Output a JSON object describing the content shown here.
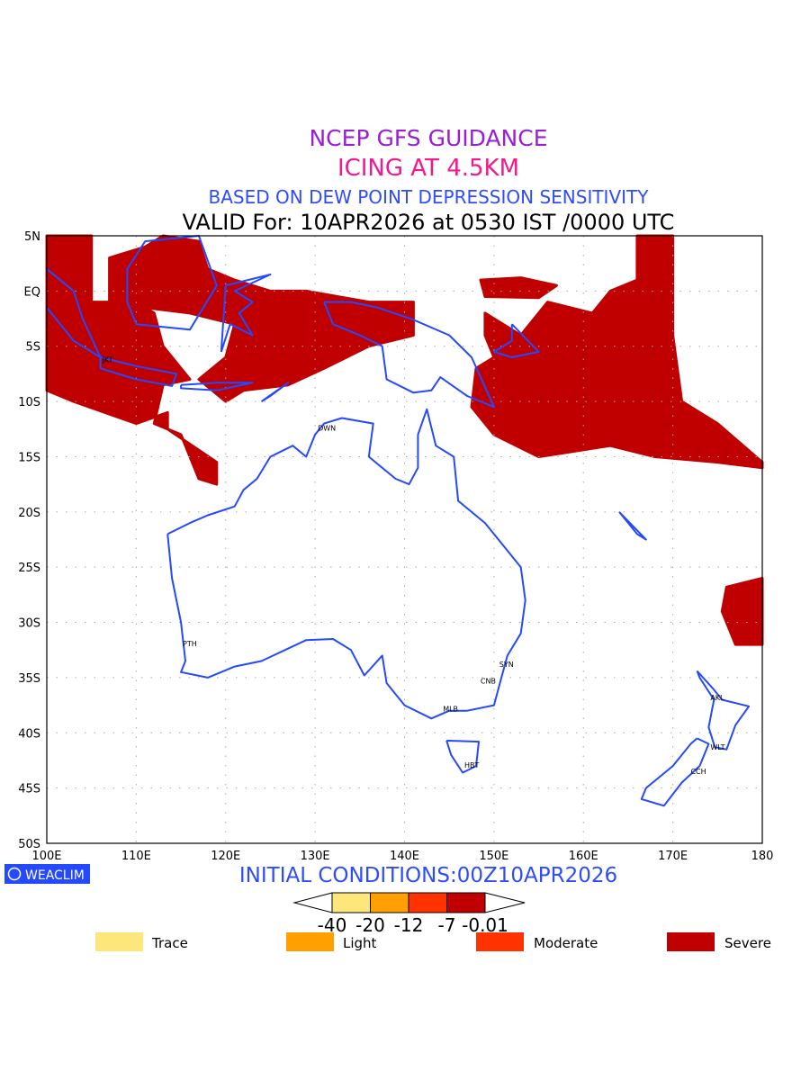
{
  "titles": {
    "line1": "NCEP GFS GUIDANCE",
    "line2": "ICING AT 4.5KM",
    "line3": "BASED ON DEW POINT DEPRESSION SENSITIVITY",
    "line4": "VALID For: 10APR2026 at 0530 IST /0000 UTC"
  },
  "colors": {
    "title1": "#9a1ed6",
    "title2": "#f5188c",
    "title3": "#2d4cff",
    "coast": "#2449ff",
    "trace": "#fde77a",
    "light": "#ff9f00",
    "moderate": "#ff3300",
    "severe": "#c00000"
  },
  "map": {
    "lon_range": [
      100,
      180
    ],
    "lat_range": [
      -50,
      5
    ],
    "lon_ticks": [
      "100E",
      "110E",
      "120E",
      "130E",
      "140E",
      "150E",
      "160E",
      "170E",
      "180"
    ],
    "lat_ticks": [
      "5N",
      "EQ",
      "5S",
      "10S",
      "15S",
      "20S",
      "25S",
      "30S",
      "35S",
      "40S",
      "45S",
      "50S"
    ],
    "cities": [
      {
        "name": "JKT",
        "lon": 106.8,
        "lat": -6.2
      },
      {
        "name": "DWN",
        "lon": 130.9,
        "lat": -12.4
      },
      {
        "name": "PTH",
        "lon": 115.8,
        "lat": -31.9
      },
      {
        "name": "SYN",
        "lon": 151.2,
        "lat": -33.8
      },
      {
        "name": "CNB",
        "lon": 149.1,
        "lat": -35.3
      },
      {
        "name": "MLB",
        "lon": 144.9,
        "lat": -37.8
      },
      {
        "name": "HBT",
        "lon": 147.3,
        "lat": -42.9
      },
      {
        "name": "AKL",
        "lon": 174.8,
        "lat": -36.8
      },
      {
        "name": "WLT",
        "lon": 174.8,
        "lat": -41.3
      },
      {
        "name": "CCH",
        "lon": 172.6,
        "lat": -43.5
      }
    ],
    "severe_regions": [
      [
        [
          100,
          5
        ],
        [
          105,
          5
        ],
        [
          105,
          -1
        ],
        [
          110,
          -1
        ],
        [
          112,
          -2
        ],
        [
          113,
          -5
        ],
        [
          116,
          -8
        ],
        [
          113,
          -8.5
        ],
        [
          112,
          -12
        ],
        [
          115,
          -13
        ],
        [
          117,
          -17
        ],
        [
          119,
          -17.5
        ],
        [
          119,
          -15.5
        ],
        [
          113.5,
          -12.5
        ],
        [
          113.5,
          -11
        ],
        [
          110,
          -12
        ],
        [
          103,
          -10
        ],
        [
          100,
          -9
        ]
      ],
      [
        [
          107,
          3
        ],
        [
          111,
          4
        ],
        [
          113,
          5
        ],
        [
          117,
          4.5
        ],
        [
          118,
          2
        ],
        [
          121,
          1
        ],
        [
          125,
          0
        ],
        [
          129,
          0
        ],
        [
          136,
          -1
        ],
        [
          141,
          -1
        ],
        [
          141,
          -4
        ],
        [
          136,
          -5
        ],
        [
          131,
          -7
        ],
        [
          127,
          -8.5
        ],
        [
          122,
          -9
        ],
        [
          120,
          -10
        ],
        [
          117,
          -8
        ],
        [
          120,
          -6
        ],
        [
          121,
          -3
        ],
        [
          116,
          -2
        ],
        [
          111,
          -1.5
        ],
        [
          107,
          -1
        ],
        [
          107,
          1
        ]
      ],
      [
        [
          149,
          -2
        ],
        [
          153,
          -4
        ],
        [
          156,
          -1
        ],
        [
          161,
          -2
        ],
        [
          163,
          0
        ],
        [
          166,
          1
        ],
        [
          166,
          5
        ],
        [
          170,
          5
        ],
        [
          170,
          -4
        ],
        [
          171,
          -10
        ],
        [
          175,
          -12
        ],
        [
          180,
          -15.5
        ],
        [
          180,
          -16
        ],
        [
          175,
          -15.5
        ],
        [
          168,
          -15
        ],
        [
          163,
          -14
        ],
        [
          155,
          -15
        ],
        [
          150,
          -13
        ],
        [
          147.5,
          -10.5
        ],
        [
          148,
          -7
        ],
        [
          150,
          -6
        ],
        [
          149,
          -4
        ]
      ],
      [
        [
          148.5,
          1
        ],
        [
          153,
          1.2
        ],
        [
          157,
          0.5
        ],
        [
          155,
          -0.6
        ],
        [
          149,
          -0.5
        ]
      ],
      [
        [
          176,
          -26.8
        ],
        [
          180,
          -26
        ],
        [
          180,
          -32
        ],
        [
          177,
          -32
        ],
        [
          175.5,
          -29
        ]
      ]
    ],
    "coastlines": [
      [
        [
          113.5,
          -22
        ],
        [
          114,
          -26
        ],
        [
          115,
          -30
        ],
        [
          115.5,
          -33.5
        ],
        [
          115,
          -34.5
        ],
        [
          118,
          -35
        ],
        [
          121,
          -34
        ],
        [
          124,
          -33.5
        ],
        [
          129,
          -31.6
        ],
        [
          132,
          -31.5
        ],
        [
          134,
          -32.5
        ],
        [
          135.5,
          -34.8
        ],
        [
          137.5,
          -33
        ],
        [
          138,
          -35.5
        ],
        [
          140,
          -37.5
        ],
        [
          143,
          -38.7
        ],
        [
          145,
          -38
        ],
        [
          147,
          -38
        ],
        [
          150,
          -37.5
        ],
        [
          150.5,
          -36
        ],
        [
          151.5,
          -33
        ],
        [
          153,
          -31
        ],
        [
          153.5,
          -28
        ],
        [
          153,
          -25
        ],
        [
          151,
          -23
        ],
        [
          149,
          -21
        ],
        [
          146,
          -19
        ],
        [
          145.5,
          -15
        ],
        [
          143.5,
          -14
        ],
        [
          142.5,
          -10.7
        ],
        [
          141.5,
          -13
        ],
        [
          141.5,
          -16
        ],
        [
          140.5,
          -17.5
        ],
        [
          139,
          -17
        ],
        [
          136,
          -15
        ],
        [
          136.5,
          -12
        ],
        [
          133,
          -11.5
        ],
        [
          131,
          -12
        ],
        [
          130,
          -13
        ],
        [
          129,
          -15
        ],
        [
          127.5,
          -14
        ],
        [
          125,
          -15
        ],
        [
          123.5,
          -17
        ],
        [
          122,
          -18
        ],
        [
          121,
          -19.5
        ],
        [
          118,
          -20.3
        ],
        [
          116,
          -21
        ],
        [
          113.5,
          -22
        ]
      ],
      [
        [
          144.7,
          -40.7
        ],
        [
          148.3,
          -40.8
        ],
        [
          148,
          -43
        ],
        [
          146.5,
          -43.6
        ],
        [
          145.2,
          -42
        ],
        [
          144.7,
          -40.7
        ]
      ],
      [
        [
          172.7,
          -34.4
        ],
        [
          174.5,
          -36
        ],
        [
          175.5,
          -37
        ],
        [
          178.5,
          -37.6
        ],
        [
          177,
          -39.3
        ],
        [
          176,
          -41.5
        ],
        [
          174.7,
          -41.3
        ],
        [
          174,
          -39.5
        ],
        [
          174.6,
          -37
        ],
        [
          173,
          -35
        ],
        [
          172.7,
          -34.4
        ]
      ],
      [
        [
          172.7,
          -40.5
        ],
        [
          174,
          -41
        ],
        [
          173,
          -43
        ],
        [
          171,
          -44.5
        ],
        [
          169,
          -46.6
        ],
        [
          166.5,
          -46
        ],
        [
          167,
          -45
        ],
        [
          170,
          -43
        ],
        [
          172,
          -41
        ],
        [
          172.7,
          -40.5
        ]
      ],
      [
        [
          131,
          -1
        ],
        [
          134,
          -1
        ],
        [
          137,
          -1.5
        ],
        [
          141,
          -2.6
        ],
        [
          145,
          -4
        ],
        [
          147.5,
          -6
        ],
        [
          150,
          -10.5
        ],
        [
          147,
          -9.5
        ],
        [
          144,
          -7.8
        ],
        [
          143,
          -9
        ],
        [
          141,
          -9.2
        ],
        [
          138,
          -8
        ],
        [
          137.5,
          -5
        ],
        [
          135,
          -4
        ],
        [
          132,
          -3
        ],
        [
          131,
          -1
        ]
      ],
      [
        [
          100,
          2
        ],
        [
          103,
          0
        ],
        [
          104,
          -2.5
        ],
        [
          106,
          -6
        ],
        [
          103,
          -4.5
        ],
        [
          100,
          -1.5
        ]
      ],
      [
        [
          106,
          -6
        ],
        [
          110,
          -6.8
        ],
        [
          114.5,
          -7.5
        ],
        [
          114,
          -8.6
        ],
        [
          110,
          -8
        ],
        [
          106,
          -7
        ],
        [
          106,
          -6
        ]
      ],
      [
        [
          109,
          2
        ],
        [
          111,
          4.5
        ],
        [
          117,
          5
        ],
        [
          119,
          0.5
        ],
        [
          116,
          -3.5
        ],
        [
          110,
          -3
        ],
        [
          109,
          -1
        ],
        [
          109,
          2
        ]
      ],
      [
        [
          119.5,
          -5.5
        ],
        [
          120,
          0.5
        ],
        [
          125,
          1.5
        ],
        [
          121,
          0
        ],
        [
          123,
          -1
        ],
        [
          121.5,
          -2
        ],
        [
          123,
          -4
        ],
        [
          120.5,
          -3
        ],
        [
          119.5,
          -5.5
        ]
      ],
      [
        [
          115,
          -8.5
        ],
        [
          119,
          -8.3
        ],
        [
          123,
          -8.3
        ],
        [
          119,
          -9
        ],
        [
          115,
          -8.8
        ],
        [
          115,
          -8.5
        ]
      ],
      [
        [
          124,
          -10
        ],
        [
          127,
          -8.3
        ],
        [
          125,
          -9.5
        ],
        [
          124,
          -10
        ]
      ],
      [
        [
          152,
          -3
        ],
        [
          155,
          -5.5
        ],
        [
          152,
          -6
        ],
        [
          150,
          -5.5
        ],
        [
          152,
          -4.5
        ],
        [
          152,
          -3
        ]
      ],
      [
        [
          164,
          -20
        ],
        [
          167,
          -22.5
        ],
        [
          166,
          -22
        ],
        [
          164,
          -20
        ]
      ]
    ]
  },
  "footer": {
    "logo": "WEACLIM",
    "initial_conditions": "INITIAL CONDITIONS:00Z10APR2026"
  },
  "colorbar": {
    "labels": [
      "-40",
      "-20",
      "-12",
      "-7",
      "-0.01"
    ]
  },
  "legend": [
    {
      "label": "Trace"
    },
    {
      "label": "Light"
    },
    {
      "label": "Moderate"
    },
    {
      "label": "Severe"
    }
  ]
}
